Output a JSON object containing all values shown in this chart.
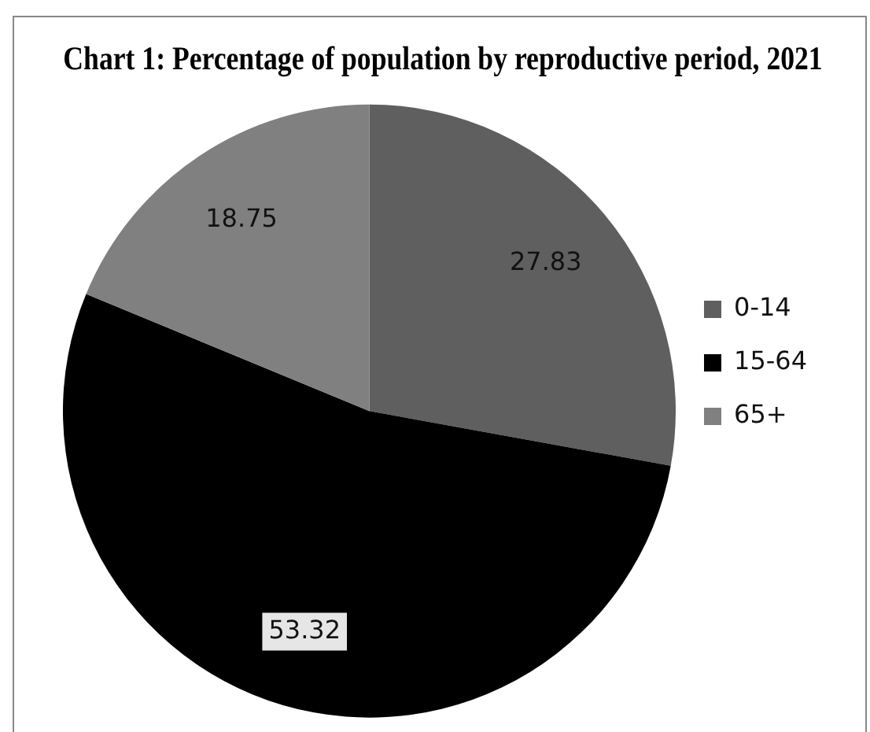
{
  "chart_data": {
    "type": "pie",
    "title": "Chart 1: Percentage of population by reproductive period, 2021",
    "categories": [
      "0-14",
      "15-64",
      "65+"
    ],
    "values": [
      27.83,
      53.32,
      18.75
    ],
    "colors": [
      "#5f5f5f",
      "#000000",
      "#808080"
    ],
    "data_labels": true,
    "legend": "right"
  }
}
